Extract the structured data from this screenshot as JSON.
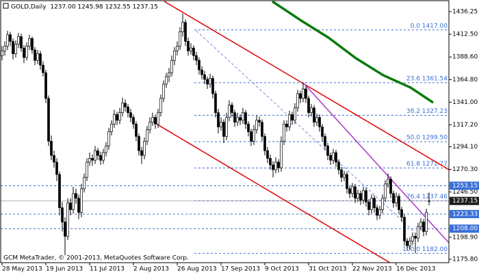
{
  "chart_data": {
    "type": "candlestick",
    "title": "GOLD,Daily  1237.00 1245.98 1232.55 1237.15",
    "footer": "GCM MetaTrader, © 2001-2013, MetaQuotes Software Corp.",
    "categories": [
      "28 May 2013",
      null,
      null,
      null,
      null,
      null,
      null,
      null,
      null,
      null,
      null,
      null,
      null,
      null,
      null,
      null,
      "19 Jun 2013",
      null,
      null,
      null,
      null,
      null,
      null,
      null,
      null,
      null,
      null,
      null,
      null,
      null,
      null,
      null,
      "11 Jul 2013",
      null,
      null,
      null,
      null,
      null,
      null,
      null,
      null,
      null,
      null,
      null,
      null,
      null,
      null,
      null,
      "2 Aug 2013",
      null,
      null,
      null,
      null,
      null,
      null,
      null,
      null,
      null,
      null,
      null,
      null,
      null,
      null,
      null,
      "26 Aug 2013",
      null,
      null,
      null,
      null,
      null,
      null,
      null,
      null,
      null,
      null,
      null,
      null,
      null,
      null,
      null,
      "17 Sep 2013",
      null,
      null,
      null,
      null,
      null,
      null,
      null,
      null,
      null,
      null,
      null,
      null,
      null,
      null,
      null,
      "9 Oct 2013",
      null,
      null,
      null,
      null,
      null,
      null,
      null,
      null,
      null,
      null,
      null,
      null,
      null,
      null,
      null,
      "31 Oct 2013",
      null,
      null,
      null,
      null,
      null,
      null,
      null,
      null,
      null,
      null,
      null,
      null,
      null,
      null,
      null,
      "22 Nov 2013",
      null,
      null,
      null,
      null,
      null,
      null,
      null,
      null,
      null,
      null,
      null,
      null,
      null,
      null,
      null,
      "16 Dec 2013",
      null,
      null,
      null,
      null,
      null,
      null,
      null,
      null,
      null,
      null,
      null,
      null
    ],
    "values": [
      [
        1390,
        1400,
        1385,
        1395
      ],
      [
        1395,
        1405,
        1390,
        1400
      ],
      [
        1400,
        1416,
        1396,
        1412
      ],
      [
        1412,
        1415,
        1400,
        1405
      ],
      [
        1405,
        1408,
        1386,
        1392
      ],
      [
        1392,
        1406,
        1388,
        1402
      ],
      [
        1402,
        1414,
        1398,
        1410
      ],
      [
        1410,
        1413,
        1394,
        1398
      ],
      [
        1398,
        1401,
        1382,
        1388
      ],
      [
        1388,
        1404,
        1385,
        1400
      ],
      [
        1400,
        1412,
        1396,
        1408
      ],
      [
        1408,
        1410,
        1392,
        1396
      ],
      [
        1396,
        1399,
        1380,
        1385
      ],
      [
        1385,
        1396,
        1381,
        1392
      ],
      [
        1392,
        1395,
        1375,
        1380
      ],
      [
        1380,
        1384,
        1368,
        1372
      ],
      [
        1372,
        1375,
        1340,
        1345
      ],
      [
        1345,
        1348,
        1295,
        1300
      ],
      [
        1300,
        1306,
        1280,
        1285
      ],
      [
        1285,
        1290,
        1272,
        1278
      ],
      [
        1278,
        1282,
        1258,
        1265
      ],
      [
        1265,
        1268,
        1222,
        1230
      ],
      [
        1230,
        1236,
        1205,
        1215
      ],
      [
        1215,
        1220,
        1180,
        1200
      ],
      [
        1200,
        1240,
        1196,
        1235
      ],
      [
        1235,
        1240,
        1222,
        1228
      ],
      [
        1228,
        1252,
        1224,
        1245
      ],
      [
        1245,
        1250,
        1234,
        1240
      ],
      [
        1240,
        1244,
        1218,
        1225
      ],
      [
        1225,
        1255,
        1220,
        1250
      ],
      [
        1250,
        1266,
        1246,
        1262
      ],
      [
        1262,
        1282,
        1258,
        1278
      ],
      [
        1278,
        1288,
        1274,
        1282
      ],
      [
        1282,
        1286,
        1274,
        1280
      ],
      [
        1280,
        1295,
        1276,
        1290
      ],
      [
        1290,
        1293,
        1280,
        1285
      ],
      [
        1285,
        1289,
        1275,
        1280
      ],
      [
        1280,
        1292,
        1276,
        1288
      ],
      [
        1288,
        1299,
        1284,
        1295
      ],
      [
        1295,
        1314,
        1291,
        1310
      ],
      [
        1310,
        1322,
        1306,
        1318
      ],
      [
        1318,
        1333,
        1314,
        1328
      ],
      [
        1328,
        1331,
        1317,
        1322
      ],
      [
        1322,
        1335,
        1318,
        1330
      ],
      [
        1330,
        1346,
        1326,
        1340
      ],
      [
        1340,
        1344,
        1331,
        1336
      ],
      [
        1336,
        1339,
        1325,
        1330
      ],
      [
        1330,
        1334,
        1320,
        1325
      ],
      [
        1325,
        1328,
        1313,
        1318
      ],
      [
        1318,
        1321,
        1300,
        1305
      ],
      [
        1305,
        1308,
        1285,
        1290
      ],
      [
        1290,
        1294,
        1276,
        1285
      ],
      [
        1285,
        1304,
        1281,
        1300
      ],
      [
        1300,
        1316,
        1296,
        1312
      ],
      [
        1312,
        1325,
        1308,
        1320
      ],
      [
        1320,
        1330,
        1316,
        1325
      ],
      [
        1325,
        1328,
        1313,
        1318
      ],
      [
        1318,
        1334,
        1314,
        1330
      ],
      [
        1330,
        1349,
        1326,
        1345
      ],
      [
        1345,
        1364,
        1341,
        1360
      ],
      [
        1360,
        1372,
        1356,
        1368
      ],
      [
        1368,
        1377,
        1362,
        1372
      ],
      [
        1372,
        1390,
        1368,
        1385
      ],
      [
        1385,
        1399,
        1380,
        1395
      ],
      [
        1395,
        1405,
        1390,
        1400
      ],
      [
        1400,
        1420,
        1396,
        1415
      ],
      [
        1415,
        1434,
        1410,
        1425
      ],
      [
        1425,
        1428,
        1400,
        1405
      ],
      [
        1405,
        1409,
        1390,
        1395
      ],
      [
        1395,
        1403,
        1391,
        1398
      ],
      [
        1398,
        1401,
        1385,
        1390
      ],
      [
        1390,
        1394,
        1380,
        1385
      ],
      [
        1385,
        1388,
        1370,
        1375
      ],
      [
        1375,
        1379,
        1365,
        1370
      ],
      [
        1370,
        1374,
        1360,
        1365
      ],
      [
        1365,
        1368,
        1355,
        1360
      ],
      [
        1360,
        1371,
        1356,
        1366
      ],
      [
        1366,
        1369,
        1345,
        1350
      ],
      [
        1350,
        1353,
        1325,
        1330
      ],
      [
        1330,
        1334,
        1308,
        1315
      ],
      [
        1315,
        1325,
        1311,
        1320
      ],
      [
        1320,
        1323,
        1298,
        1305
      ],
      [
        1305,
        1330,
        1301,
        1325
      ],
      [
        1325,
        1343,
        1321,
        1338
      ],
      [
        1338,
        1341,
        1325,
        1330
      ],
      [
        1330,
        1333,
        1315,
        1320
      ],
      [
        1320,
        1330,
        1316,
        1325
      ],
      [
        1325,
        1328,
        1317,
        1322
      ],
      [
        1322,
        1335,
        1318,
        1330
      ],
      [
        1330,
        1333,
        1313,
        1318
      ],
      [
        1318,
        1321,
        1305,
        1310
      ],
      [
        1310,
        1313,
        1295,
        1300
      ],
      [
        1300,
        1317,
        1296,
        1312
      ],
      [
        1312,
        1327,
        1308,
        1322
      ],
      [
        1322,
        1326,
        1315,
        1320
      ],
      [
        1320,
        1323,
        1300,
        1305
      ],
      [
        1305,
        1308,
        1285,
        1290
      ],
      [
        1290,
        1294,
        1277,
        1282
      ],
      [
        1282,
        1286,
        1270,
        1275
      ],
      [
        1275,
        1279,
        1262,
        1270
      ],
      [
        1270,
        1283,
        1266,
        1278
      ],
      [
        1278,
        1281,
        1267,
        1272
      ],
      [
        1272,
        1305,
        1268,
        1300
      ],
      [
        1300,
        1322,
        1296,
        1318
      ],
      [
        1318,
        1322,
        1310,
        1315
      ],
      [
        1315,
        1332,
        1311,
        1328
      ],
      [
        1328,
        1331,
        1317,
        1322
      ],
      [
        1322,
        1340,
        1318,
        1335
      ],
      [
        1335,
        1354,
        1331,
        1350
      ],
      [
        1350,
        1353,
        1340,
        1345
      ],
      [
        1345,
        1362,
        1341,
        1355
      ],
      [
        1355,
        1358,
        1340,
        1345
      ],
      [
        1345,
        1348,
        1325,
        1330
      ],
      [
        1330,
        1339,
        1326,
        1335
      ],
      [
        1335,
        1338,
        1315,
        1320
      ],
      [
        1320,
        1329,
        1316,
        1325
      ],
      [
        1325,
        1328,
        1310,
        1315
      ],
      [
        1315,
        1318,
        1300,
        1305
      ],
      [
        1305,
        1308,
        1290,
        1295
      ],
      [
        1295,
        1298,
        1280,
        1285
      ],
      [
        1285,
        1288,
        1275,
        1280
      ],
      [
        1280,
        1292,
        1276,
        1288
      ],
      [
        1288,
        1291,
        1273,
        1278
      ],
      [
        1278,
        1281,
        1265,
        1270
      ],
      [
        1270,
        1273,
        1257,
        1262
      ],
      [
        1262,
        1269,
        1258,
        1265
      ],
      [
        1265,
        1268,
        1245,
        1250
      ],
      [
        1250,
        1253,
        1240,
        1245
      ],
      [
        1245,
        1256,
        1241,
        1252
      ],
      [
        1252,
        1255,
        1235,
        1240
      ],
      [
        1240,
        1249,
        1236,
        1245
      ],
      [
        1245,
        1248,
        1233,
        1238
      ],
      [
        1238,
        1252,
        1234,
        1248
      ],
      [
        1248,
        1251,
        1231,
        1236
      ],
      [
        1236,
        1239,
        1222,
        1228
      ],
      [
        1228,
        1244,
        1224,
        1240
      ],
      [
        1240,
        1243,
        1225,
        1230
      ],
      [
        1230,
        1233,
        1217,
        1222
      ],
      [
        1222,
        1232,
        1218,
        1228
      ],
      [
        1228,
        1244,
        1224,
        1240
      ],
      [
        1240,
        1259,
        1236,
        1255
      ],
      [
        1255,
        1266,
        1251,
        1260
      ],
      [
        1260,
        1263,
        1240,
        1245
      ],
      [
        1245,
        1248,
        1230,
        1235
      ],
      [
        1235,
        1246,
        1231,
        1242
      ],
      [
        1242,
        1245,
        1223,
        1228
      ],
      [
        1228,
        1231,
        1215,
        1220
      ],
      [
        1220,
        1223,
        1190,
        1195
      ],
      [
        1195,
        1198,
        1185,
        1190
      ],
      [
        1190,
        1199,
        1186,
        1195
      ],
      [
        1195,
        1204,
        1191,
        1200
      ],
      [
        1200,
        1203,
        1182,
        1198
      ],
      [
        1198,
        1214,
        1194,
        1210
      ],
      [
        1210,
        1219,
        1206,
        1215
      ],
      [
        1215,
        1218,
        1200,
        1205
      ],
      [
        1205,
        1229,
        1201,
        1225
      ],
      [
        1237,
        1245.98,
        1232.55,
        1237.15
      ]
    ],
    "up_color": "#ffffff",
    "down_color": "#000000",
    "level_color": "#3a6fd8",
    "ylim": [
      1172.2,
      1448.5
    ],
    "yticks": [
      1436.25,
      {
        "value": 1412.5,
        "label": "1412.50"
      },
      {
        "value": 1388.6,
        "label": "1388.60"
      },
      {
        "value": 1364.8,
        "label": "1364.80"
      },
      {
        "value": 1341,
        "label": "1341.00"
      },
      {
        "value": 1317.2,
        "label": "1317.20"
      },
      {
        "value": 1294.1,
        "label": "1294.10"
      },
      {
        "value": 1270.3,
        "label": "1270.30"
      },
      {
        "value": 1246.5,
        "label": "1246.50"
      },
      {
        "value": 1198.9,
        "label": "1198.90"
      },
      {
        "value": 1175.8,
        "label": "1175.80"
      }
    ],
    "fib_levels": [
      {
        "value": 1417,
        "label": "0.0 1417.00"
      },
      {
        "value": 1361.54,
        "label": "23.6 1361.54"
      },
      {
        "value": 1327.23,
        "label": "38.2 1327.23"
      },
      {
        "value": 1299.5,
        "label": "50.0 1299.50"
      },
      {
        "value": 1271.77,
        "label": "61.8 1271.77"
      },
      {
        "value": 1237.46,
        "label": "76.4 1237.46"
      },
      {
        "value": 1182,
        "label": "100.0 1182.00"
      }
    ],
    "price_levels": [
      1253.15,
      1223.33,
      {
        "value": 1208,
        "label": "1208.00"
      }
    ],
    "last_price": 1237.15
  }
}
